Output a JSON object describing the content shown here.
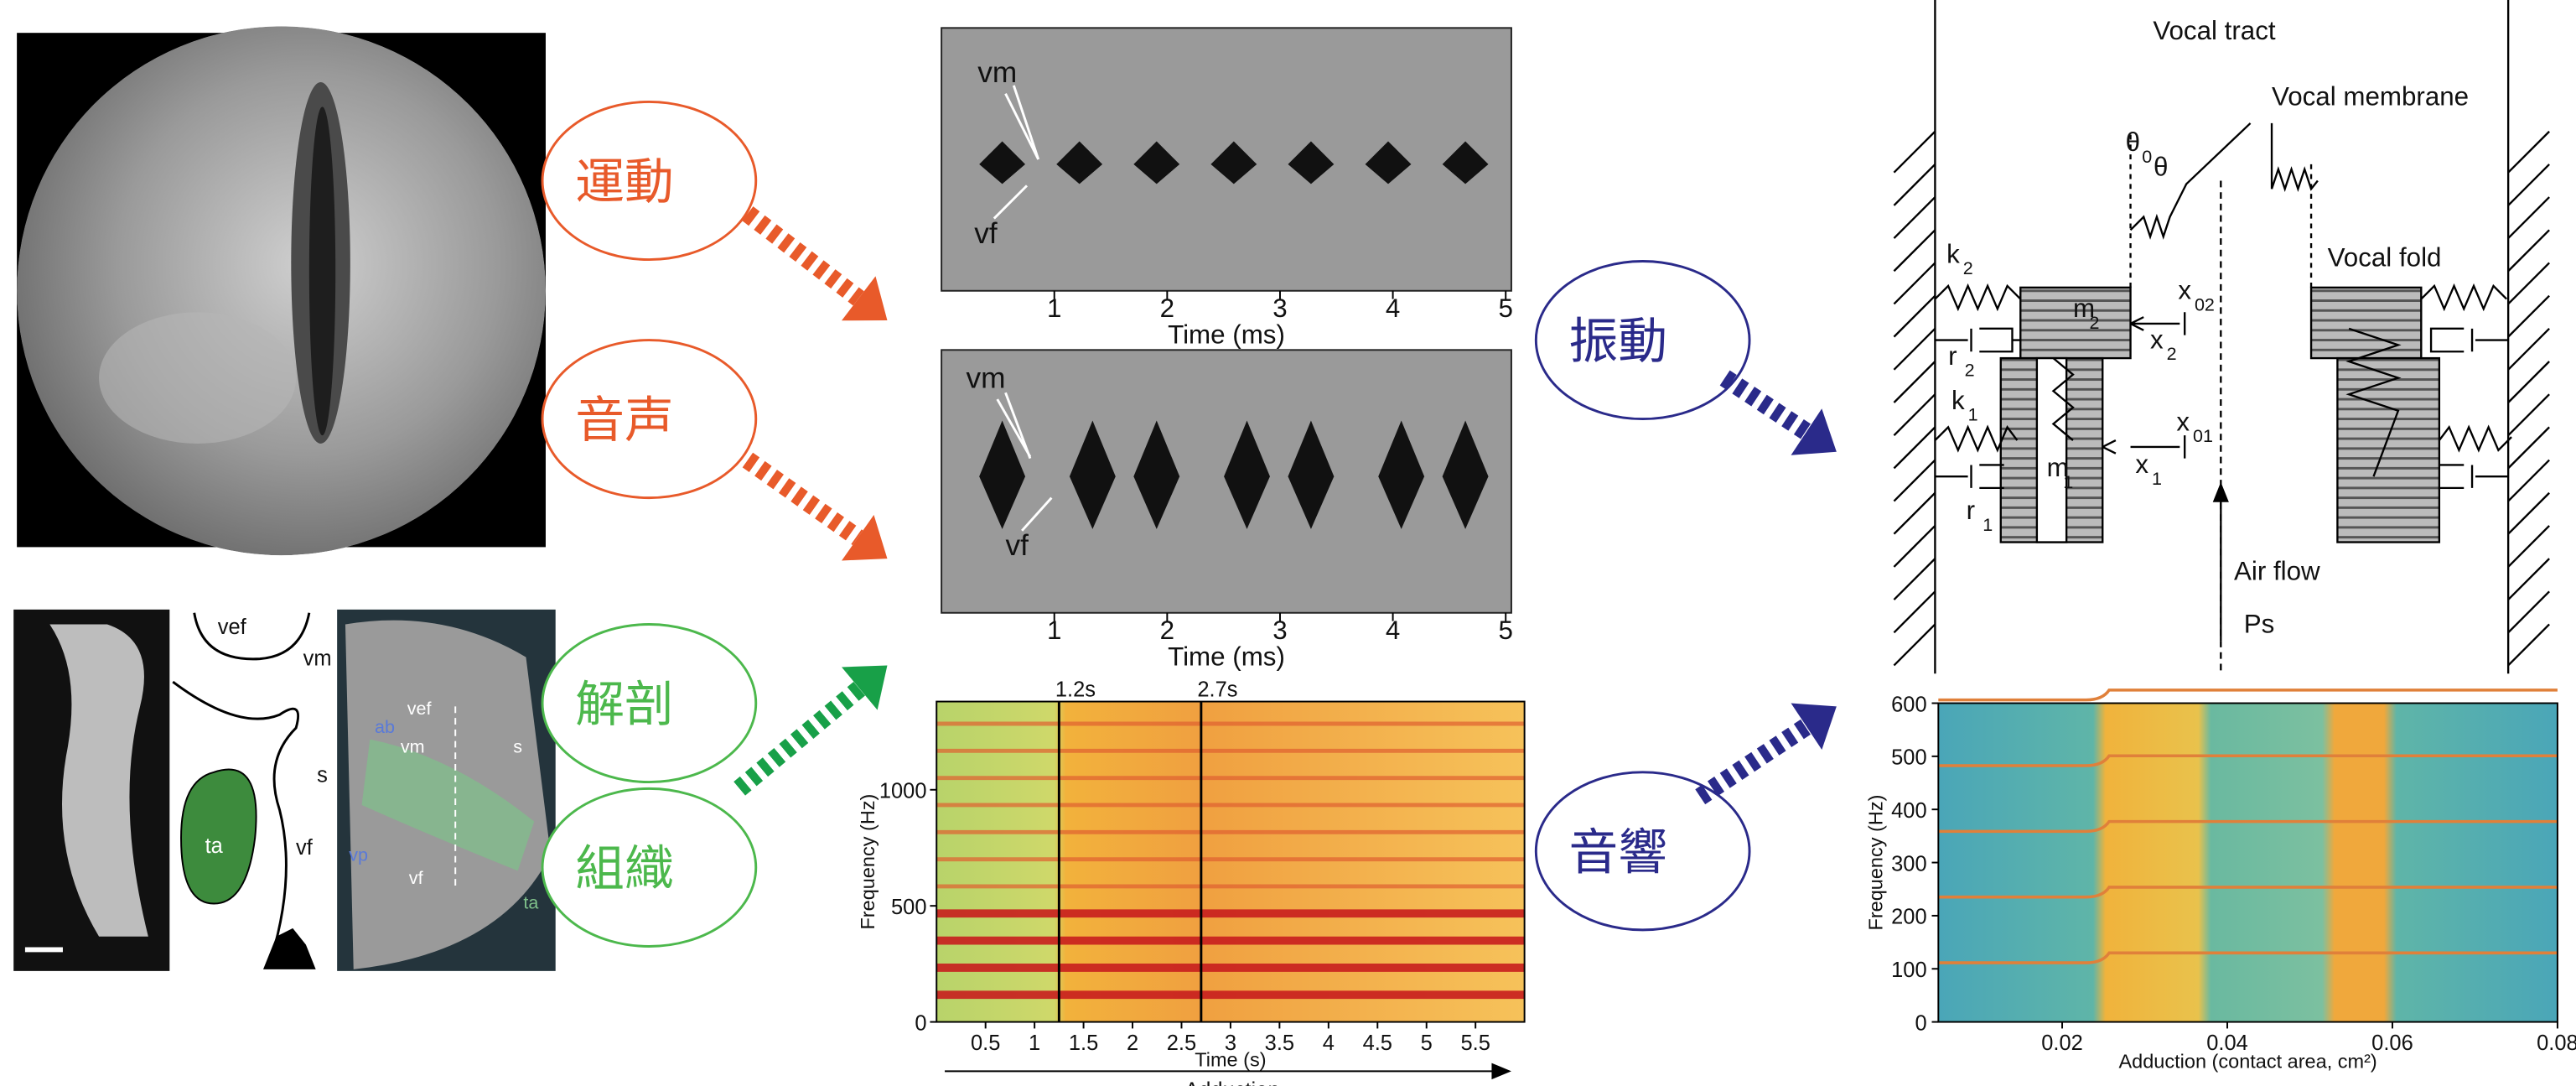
{
  "labels": {
    "motion": "運動",
    "voice": "音声",
    "anatomy": "解剖",
    "tissue": "組織",
    "vibration": "振動",
    "acoustics": "音響"
  },
  "anatomy": {
    "drawing_labels": [
      "vef",
      "vm",
      "s",
      "vf",
      "ta"
    ],
    "render_labels": [
      "vef",
      "vm",
      "s",
      "ab",
      "vp",
      "vf",
      "ta"
    ]
  },
  "kymograms": [
    {
      "labels": [
        "vm",
        "vf"
      ],
      "xlim": [
        0,
        5.05
      ],
      "xticks": [
        1,
        2,
        3,
        4,
        5
      ],
      "xlabel": "Time (ms)"
    },
    {
      "labels": [
        "vm",
        "vf"
      ],
      "xlim": [
        0,
        5.05
      ],
      "xticks": [
        1,
        2,
        3,
        4,
        5
      ],
      "xlabel": "Time (ms)"
    }
  ],
  "spectrogram": {
    "ylabel": "Frequency (Hz)",
    "ylim": [
      0,
      1380
    ],
    "yticks": [
      0,
      500,
      1000
    ],
    "xlim": [
      0,
      6
    ],
    "xticks": [
      0.5,
      1,
      1.5,
      2,
      2.5,
      3,
      3.5,
      4,
      4.5,
      5,
      5.5
    ],
    "xlabel": "Time (s)",
    "markers": [
      {
        "value": 1.25,
        "label": "1.2s"
      },
      {
        "value": 2.7,
        "label": "2.7s"
      }
    ],
    "arrow_label": "Adduction"
  },
  "model": {
    "labels": [
      {
        "text": "Vocal tract"
      },
      {
        "text": "Vocal membrane"
      },
      {
        "text": "θ",
        "sub": "0"
      },
      {
        "text": "θ"
      },
      {
        "text": "k",
        "sub": "2"
      },
      {
        "text": "m",
        "sub": "2"
      },
      {
        "text": "x",
        "sub": "02"
      },
      {
        "text": "x",
        "sub": "2"
      },
      {
        "text": "r",
        "sub": "2"
      },
      {
        "text": "k",
        "sub": "1"
      },
      {
        "text": "m",
        "sub": "1"
      },
      {
        "text": "x",
        "sub": "01"
      },
      {
        "text": "x",
        "sub": "1"
      },
      {
        "text": "r",
        "sub": "1"
      },
      {
        "text": "Vocal fold"
      },
      {
        "text": "Air flow"
      },
      {
        "text": "Ps"
      }
    ]
  },
  "spectrogram2": {
    "ylabel": "Frequency (Hz)",
    "ylim": [
      0,
      600
    ],
    "yticks": [
      0,
      100,
      200,
      300,
      400,
      500,
      600
    ],
    "xlim": [
      0.005,
      0.08
    ],
    "xticks": [
      0.02,
      0.04,
      0.06,
      0.08
    ],
    "xlabel": "Adduction (contact area, cm²)"
  }
}
